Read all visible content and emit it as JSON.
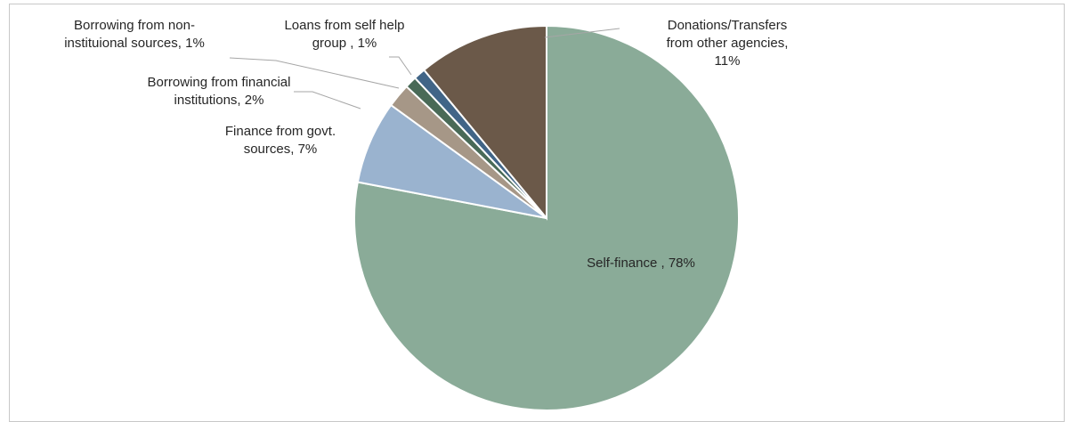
{
  "chart_data": {
    "type": "pie",
    "title": "",
    "slices": [
      {
        "label_lines": [
          "Self-finance , 78%"
        ],
        "value": 78,
        "color": "#8aab98"
      },
      {
        "label_lines": [
          "Finance from govt.",
          "sources, 7%"
        ],
        "value": 7,
        "color": "#9ab3cf"
      },
      {
        "label_lines": [
          "Borrowing from financial",
          "institutions, 2%"
        ],
        "value": 2,
        "color": "#a69787"
      },
      {
        "label_lines": [
          "Borrowing from non-",
          "instituional sources, 1%"
        ],
        "value": 1,
        "color": "#496a57"
      },
      {
        "label_lines": [
          "Loans from self help",
          "group , 1%"
        ],
        "value": 1,
        "color": "#416587"
      },
      {
        "label_lines": [
          "Donations/Transfers",
          "from other agencies,",
          "11%"
        ],
        "value": 11,
        "color": "#6b5949"
      }
    ],
    "legend": "none",
    "data_labels": "outside with leader lines"
  }
}
